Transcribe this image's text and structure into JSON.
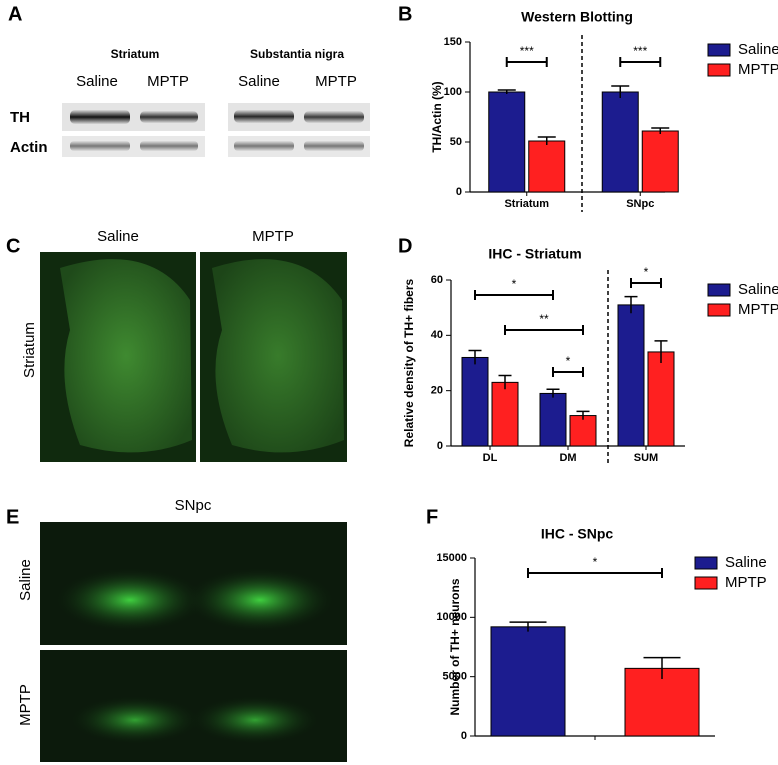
{
  "panel_letters": [
    "A",
    "B",
    "C",
    "D",
    "E",
    "F"
  ],
  "panel_a": {
    "regions": [
      "Striatum",
      "Substantia nigra"
    ],
    "columns": [
      "Saline",
      "MPTP",
      "Saline",
      "MPTP"
    ],
    "rows": [
      "TH",
      "Actin"
    ]
  },
  "panel_c": {
    "columns": [
      "Saline",
      "MPTP"
    ],
    "row": "Striatum"
  },
  "panel_e": {
    "title": "SNpc",
    "rows": [
      "Saline",
      "MPTP"
    ]
  },
  "chart_data": [
    {
      "type": "bar",
      "title": "Western Blotting",
      "y_label": "TH/Actin (%)",
      "categories": [
        "Striatum",
        "SNpc"
      ],
      "series": [
        {
          "name": "Saline",
          "color": "#1c1c8f",
          "values": [
            100,
            100
          ],
          "errors": [
            2,
            6
          ]
        },
        {
          "name": "MPTP",
          "color": "#ff2020",
          "values": [
            51,
            61
          ],
          "errors": [
            4,
            3
          ]
        }
      ],
      "ylim": [
        0,
        150
      ],
      "yticks": [
        0,
        50,
        100,
        150
      ],
      "annotations": [
        "***",
        "***"
      ]
    },
    {
      "type": "bar",
      "title": "IHC - Striatum",
      "y_label": "Relative density of TH+ fibers",
      "categories": [
        "DL",
        "DM",
        "SUM"
      ],
      "series": [
        {
          "name": "Saline",
          "color": "#1c1c8f",
          "values": [
            32,
            19,
            51
          ],
          "errors": [
            2.5,
            1.5,
            3
          ]
        },
        {
          "name": "MPTP",
          "color": "#ff2020",
          "values": [
            23,
            11,
            34
          ],
          "errors": [
            2.5,
            1.5,
            4
          ]
        }
      ],
      "ylim": [
        0,
        60
      ],
      "yticks": [
        0,
        20,
        40,
        60
      ],
      "annotations": [
        "*",
        "**",
        "*",
        "*"
      ]
    },
    {
      "type": "bar",
      "title": "IHC - SNpc",
      "y_label": "Number of TH+ neurons",
      "categories": [
        null
      ],
      "series": [
        {
          "name": "Saline",
          "color": "#1c1c8f",
          "values": [
            9200
          ],
          "errors": [
            400
          ]
        },
        {
          "name": "MPTP",
          "color": "#ff2020",
          "values": [
            5700
          ],
          "errors": [
            900
          ]
        }
      ],
      "ylim": [
        0,
        15000
      ],
      "yticks": [
        0,
        5000,
        10000,
        15000
      ],
      "annotations": [
        "*"
      ]
    }
  ]
}
